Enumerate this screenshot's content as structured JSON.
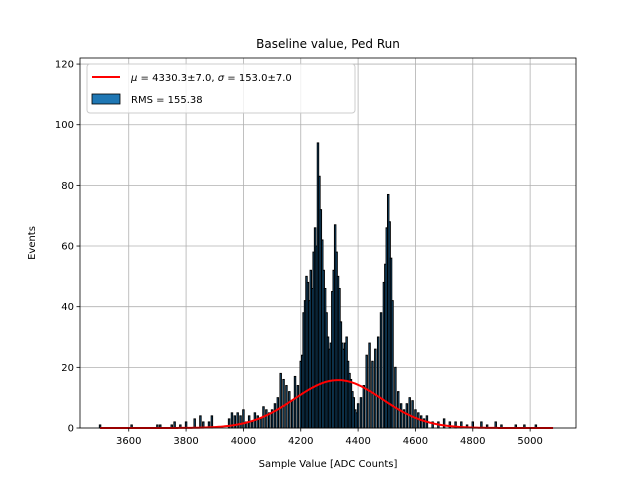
{
  "chart_data": {
    "type": "bar",
    "title": "Baseline value, Ped Run",
    "xlabel": "Sample Value [ADC Counts]",
    "ylabel": "Events",
    "xlim": [
      3430,
      5160
    ],
    "ylim": [
      0,
      122
    ],
    "xticks": [
      3600,
      3800,
      4000,
      4200,
      4400,
      4600,
      4800,
      5000
    ],
    "yticks": [
      0,
      20,
      40,
      60,
      80,
      100,
      120
    ],
    "grid": true,
    "legend_placement": "upper-left",
    "series": [
      {
        "name": "RMS = 155.38",
        "kind": "histogram",
        "color": "#1f77b4",
        "edgecolor": "#000000",
        "x": [
          3500,
          3610,
          3700,
          3710,
          3750,
          3760,
          3780,
          3800,
          3830,
          3850,
          3860,
          3880,
          3890,
          3950,
          3960,
          3970,
          3980,
          3990,
          4000,
          4010,
          4020,
          4030,
          4040,
          4050,
          4060,
          4070,
          4080,
          4090,
          4100,
          4110,
          4120,
          4130,
          4140,
          4150,
          4160,
          4170,
          4180,
          4190,
          4200,
          4205,
          4210,
          4215,
          4220,
          4225,
          4230,
          4235,
          4240,
          4245,
          4250,
          4255,
          4260,
          4265,
          4270,
          4275,
          4280,
          4285,
          4290,
          4295,
          4300,
          4305,
          4310,
          4315,
          4320,
          4325,
          4330,
          4335,
          4340,
          4345,
          4350,
          4355,
          4360,
          4365,
          4370,
          4375,
          4380,
          4385,
          4390,
          4395,
          4400,
          4410,
          4420,
          4430,
          4440,
          4450,
          4460,
          4470,
          4480,
          4490,
          4495,
          4500,
          4505,
          4510,
          4515,
          4520,
          4530,
          4540,
          4550,
          4560,
          4570,
          4580,
          4590,
          4600,
          4610,
          4620,
          4630,
          4640,
          4660,
          4680,
          4700,
          4720,
          4740,
          4760,
          4780,
          4800,
          4830,
          4850,
          4880,
          4900,
          4950,
          4980,
          5020
        ],
        "values": [
          1,
          1,
          1,
          1,
          1,
          2,
          1,
          2,
          3,
          4,
          2,
          2,
          4,
          3,
          5,
          4,
          5,
          4,
          6,
          2,
          4,
          2,
          5,
          4,
          3,
          7,
          6,
          5,
          6,
          8,
          10,
          18,
          16,
          14,
          12,
          9,
          17,
          14,
          22,
          24,
          38,
          42,
          50,
          48,
          42,
          52,
          46,
          58,
          66,
          60,
          94,
          83,
          72,
          62,
          52,
          46,
          38,
          30,
          26,
          28,
          45,
          52,
          67,
          58,
          50,
          46,
          35,
          28,
          26,
          28,
          30,
          22,
          18,
          16,
          12,
          10,
          6,
          5,
          8,
          10,
          14,
          24,
          28,
          22,
          26,
          30,
          38,
          48,
          54,
          66,
          77,
          68,
          56,
          42,
          20,
          12,
          8,
          6,
          8,
          10,
          9,
          6,
          5,
          4,
          3,
          4,
          2,
          2,
          3,
          2,
          2,
          2,
          1,
          2,
          2,
          1,
          2,
          1,
          1,
          1,
          1
        ]
      },
      {
        "name": "$\\mu = 4330.3$±7.0, $\\sigma = 153.0$±7.0",
        "kind": "gaussian-fit",
        "color": "#ff0000",
        "mu": 4330.3,
        "sigma": 153.0,
        "amplitude": 15.8,
        "x_range": [
          3500,
          5080
        ]
      }
    ],
    "legend": [
      {
        "label_parts": [
          "μ",
          " = 4330.3±7.0, ",
          "σ",
          " = 153.0±7.0"
        ],
        "marker": "line",
        "color": "#ff0000"
      },
      {
        "label": "RMS = 155.38",
        "marker": "patch",
        "color": "#1f77b4"
      }
    ]
  }
}
